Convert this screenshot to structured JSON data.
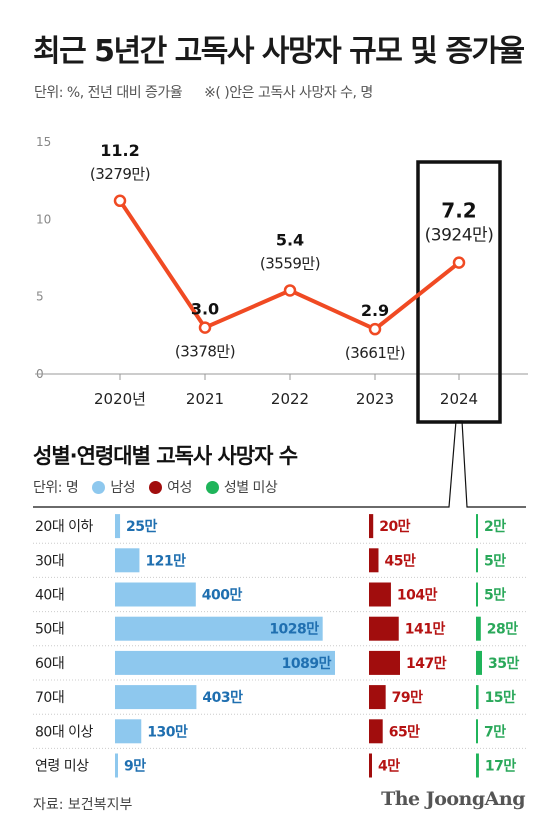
{
  "title": "최근 5년간 고독사 사망자 규모 및 증가율",
  "subtitle": {
    "unit": "단위: %, 전년 대비 증가율",
    "note": "※( )안은 고독사 사망자 수, 명"
  },
  "colors": {
    "line": "#f04a23",
    "axis": "#999999",
    "male": "#8ec8ee",
    "male_text": "#1f6fb0",
    "female": "#a10d0d",
    "female_text": "#b51212",
    "unknown": "#1fb45a",
    "unknown_text": "#2aa85a",
    "highlight_box": "#111111"
  },
  "chart_data": [
    {
      "type": "line",
      "x": [
        "2020년",
        "2021",
        "2022",
        "2023",
        "2024"
      ],
      "series": [
        {
          "values": [
            11.2,
            3.0,
            5.4,
            2.9,
            7.2
          ],
          "value_labels": [
            "11.2",
            "3.0",
            "5.4",
            "2.9",
            "7.2"
          ],
          "count_labels": [
            "(3279만)",
            "(3378만)",
            "(3559만)",
            "(3661만)",
            "(3924만)"
          ]
        }
      ],
      "yticks": [
        "0",
        "5",
        "10",
        "15"
      ],
      "ylim": [
        0,
        15
      ],
      "highlight_category": "2024",
      "grid": false
    },
    {
      "type": "bar",
      "title": "성별·연령대별 고독사 사망자 수",
      "unit_label": "단위: 명",
      "categories": [
        "20대 이하",
        "30대",
        "40대",
        "50대",
        "60대",
        "70대",
        "80대 이상",
        "연령 미상"
      ],
      "series": [
        {
          "name": "남성",
          "values": [
            25,
            121,
            400,
            1028,
            1089,
            403,
            130,
            9
          ],
          "labels": [
            "25만",
            "121만",
            "400만",
            "1028만",
            "1089만",
            "403만",
            "130만",
            "9만"
          ]
        },
        {
          "name": "여성",
          "values": [
            20,
            45,
            104,
            141,
            147,
            79,
            65,
            4
          ],
          "labels": [
            "20만",
            "45만",
            "104만",
            "141만",
            "147만",
            "79만",
            "65만",
            "4만"
          ]
        },
        {
          "name": "성별 미상",
          "values": [
            2,
            5,
            5,
            28,
            35,
            15,
            7,
            17
          ],
          "labels": [
            "2만",
            "5만",
            "5만",
            "28만",
            "35만",
            "15만",
            "7만",
            "17만"
          ]
        }
      ]
    }
  ],
  "source": "자료: 보건복지부",
  "brand": "The JoongAng"
}
